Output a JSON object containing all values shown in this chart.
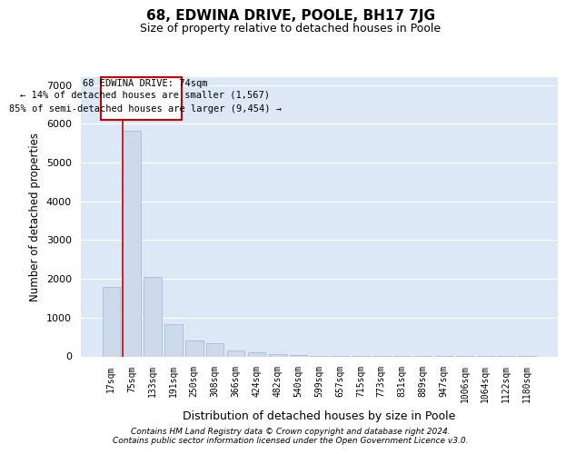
{
  "title": "68, EDWINA DRIVE, POOLE, BH17 7JG",
  "subtitle": "Size of property relative to detached houses in Poole",
  "xlabel": "Distribution of detached houses by size in Poole",
  "ylabel": "Number of detached properties",
  "categories": [
    "17sqm",
    "75sqm",
    "133sqm",
    "191sqm",
    "250sqm",
    "308sqm",
    "366sqm",
    "424sqm",
    "482sqm",
    "540sqm",
    "599sqm",
    "657sqm",
    "715sqm",
    "773sqm",
    "831sqm",
    "889sqm",
    "947sqm",
    "1006sqm",
    "1064sqm",
    "1122sqm",
    "1180sqm"
  ],
  "values": [
    1780,
    5820,
    2050,
    820,
    420,
    340,
    150,
    100,
    65,
    30,
    15,
    10,
    5,
    3,
    2,
    1,
    1,
    1,
    1,
    1,
    1
  ],
  "bar_color": "#ccdaeb",
  "bar_edgecolor": "#a8bdd4",
  "highlight_bar_index": 1,
  "highlight_line_color": "#cc0000",
  "annotation_line1": "68 EDWINA DRIVE: 74sqm",
  "annotation_line2": "← 14% of detached houses are smaller (1,567)",
  "annotation_line3": "85% of semi-detached houses are larger (9,454) →",
  "annotation_box_edgecolor": "#cc0000",
  "annotation_box_facecolor": "#ffffff",
  "ylim": [
    0,
    7200
  ],
  "yticks": [
    0,
    1000,
    2000,
    3000,
    4000,
    5000,
    6000,
    7000
  ],
  "background_color": "#ffffff",
  "plot_bg_color": "#dce8f5",
  "grid_color": "#ffffff",
  "footer_line1": "Contains HM Land Registry data © Crown copyright and database right 2024.",
  "footer_line2": "Contains public sector information licensed under the Open Government Licence v3.0."
}
